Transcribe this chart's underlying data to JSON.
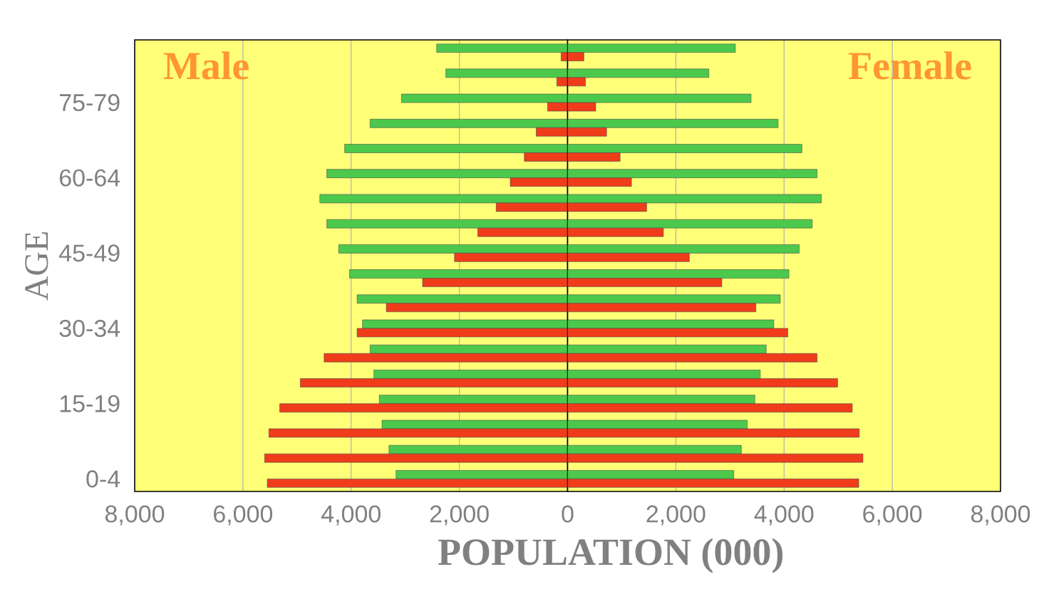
{
  "chart_data": [
    {
      "type": "bar",
      "orientation": "horizontal",
      "xlabel": "POPULATION (000)",
      "ylabel": "AGE",
      "annotations": [
        "Male"
      ],
      "categories": [
        null,
        null,
        "75-79",
        null,
        null,
        "60-64",
        null,
        null,
        "45-49",
        null,
        null,
        "30-34",
        null,
        null,
        "15-19",
        null,
        null,
        "0-4"
      ],
      "series": [
        {
          "color": "#4cc94c",
          "values": [
            2420,
            2250,
            3070,
            3650,
            4120,
            4450,
            4580,
            4450,
            4230,
            4030,
            3890,
            3790,
            3650,
            3580,
            3480,
            3430,
            3300,
            3170
          ]
        },
        {
          "color": "#f03c1a",
          "values": [
            120,
            200,
            370,
            580,
            800,
            1060,
            1320,
            1660,
            2090,
            2680,
            3350,
            3890,
            4500,
            4940,
            5320,
            5520,
            5600,
            5550
          ]
        }
      ],
      "xlim": [
        8000,
        0
      ],
      "xticks": [
        {
          "value": 8000,
          "label": "8,000"
        },
        {
          "value": 6000,
          "label": "6,000"
        },
        {
          "value": 4000,
          "label": "4,000"
        },
        {
          "value": 2000,
          "label": "2,000"
        },
        0
      ],
      "grid": "x"
    },
    {
      "type": "bar",
      "orientation": "horizontal",
      "annotations": [
        "Female"
      ],
      "categories": [
        null,
        null,
        null,
        null,
        null,
        null,
        null,
        null,
        null,
        null,
        null,
        null,
        null,
        null,
        null,
        null,
        null,
        null
      ],
      "series": [
        {
          "color": "#4cc94c",
          "values": [
            3100,
            2610,
            3390,
            3890,
            4330,
            4610,
            4690,
            4520,
            4280,
            4090,
            3930,
            3810,
            3670,
            3560,
            3460,
            3320,
            3210,
            3070
          ]
        },
        {
          "color": "#f03c1a",
          "values": [
            300,
            330,
            520,
            720,
            970,
            1180,
            1460,
            1770,
            2250,
            2850,
            3480,
            4070,
            4610,
            4990,
            5260,
            5390,
            5460,
            5380
          ]
        }
      ],
      "xlim": [
        0,
        8000
      ],
      "xticks": [
        {
          "value": 0,
          "label": null
        },
        {
          "value": 2000,
          "label": "2,000"
        },
        {
          "value": 4000,
          "label": "4,000"
        },
        {
          "value": 6000,
          "label": "6,000"
        },
        {
          "value": 8000,
          "label": "8,000"
        }
      ],
      "tick_labels": "x",
      "grid": "x"
    }
  ]
}
